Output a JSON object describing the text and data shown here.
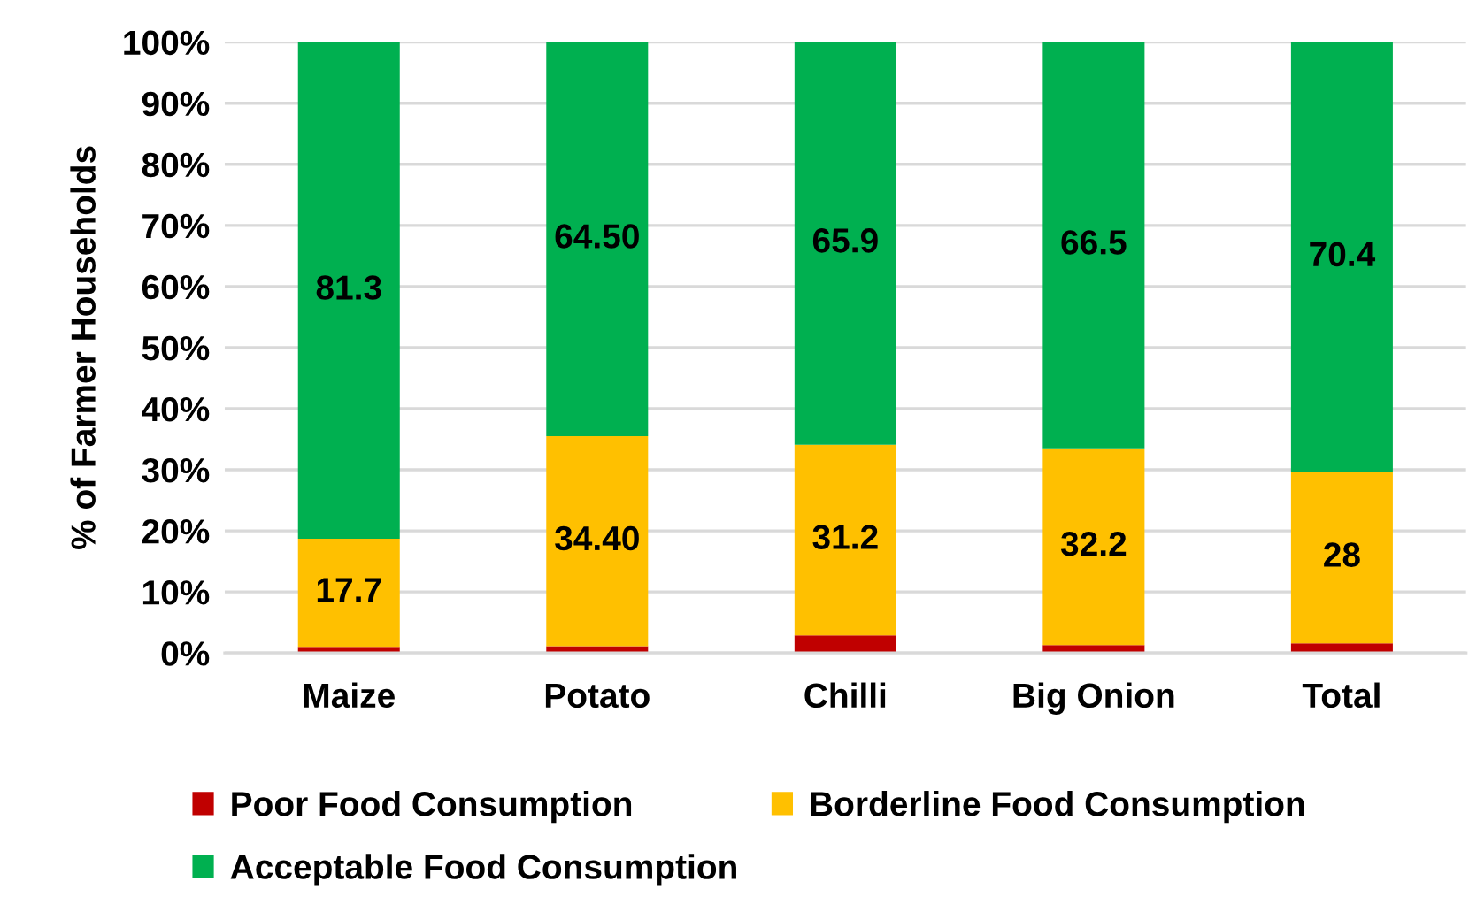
{
  "chart_data": {
    "type": "bar",
    "stacked": true,
    "categories": [
      "Maize",
      "Potato",
      "Chilli",
      "Big Onion",
      "Total"
    ],
    "series": [
      {
        "name": "Poor Food Consumption",
        "color": "#c00000",
        "values": [
          1.0,
          1.1,
          2.9,
          1.3,
          1.6
        ]
      },
      {
        "name": "Borderline Food Consumption",
        "color": "#ffc000",
        "values": [
          17.7,
          34.4,
          31.2,
          32.2,
          28
        ],
        "value_labels": [
          "17.7",
          "34.40",
          "31.2",
          "32.2",
          "28"
        ]
      },
      {
        "name": "Acceptable Food Consumption",
        "color": "#00b050",
        "values": [
          81.3,
          64.5,
          65.9,
          66.5,
          70.4
        ],
        "value_labels": [
          "81.3",
          "64.50",
          "65.9",
          "66.5",
          "70.4"
        ]
      }
    ],
    "ylabel": "% of Farmer Households",
    "ylim": [
      0,
      100
    ],
    "yticks": [
      {
        "value": 0,
        "label": "0%"
      },
      {
        "value": 10,
        "label": "10%"
      },
      {
        "value": 20,
        "label": "20%"
      },
      {
        "value": 30,
        "label": "30%"
      },
      {
        "value": 40,
        "label": "40%"
      },
      {
        "value": 50,
        "label": "50%"
      },
      {
        "value": 60,
        "label": "60%"
      },
      {
        "value": 70,
        "label": "70%"
      },
      {
        "value": 80,
        "label": "80%"
      },
      {
        "value": 90,
        "label": "90%"
      },
      {
        "value": 100,
        "label": "100%"
      }
    ],
    "grid": "y",
    "legend": "bottom"
  }
}
